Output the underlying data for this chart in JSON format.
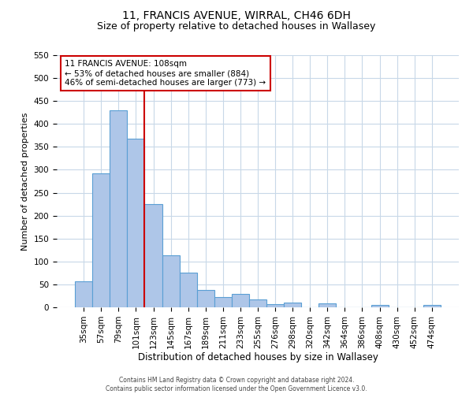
{
  "title": "11, FRANCIS AVENUE, WIRRAL, CH46 6DH",
  "subtitle": "Size of property relative to detached houses in Wallasey",
  "xlabel": "Distribution of detached houses by size in Wallasey",
  "ylabel": "Number of detached properties",
  "bar_labels": [
    "35sqm",
    "57sqm",
    "79sqm",
    "101sqm",
    "123sqm",
    "145sqm",
    "167sqm",
    "189sqm",
    "211sqm",
    "233sqm",
    "255sqm",
    "276sqm",
    "298sqm",
    "320sqm",
    "342sqm",
    "364sqm",
    "386sqm",
    "408sqm",
    "430sqm",
    "452sqm",
    "474sqm"
  ],
  "bar_values": [
    57,
    293,
    430,
    368,
    226,
    113,
    76,
    38,
    22,
    29,
    18,
    7,
    11,
    0,
    9,
    0,
    0,
    5,
    0,
    0,
    5
  ],
  "bar_color": "#aec6e8",
  "bar_edge_color": "#5a9fd4",
  "annotation_line1": "11 FRANCIS AVENUE: 108sqm",
  "annotation_line2": "← 53% of detached houses are smaller (884)",
  "annotation_line3": "46% of semi-detached houses are larger (773) →",
  "annotation_box_color": "#ffffff",
  "annotation_box_edge": "#cc0000",
  "red_line_color": "#cc0000",
  "ylim": [
    0,
    550
  ],
  "yticks": [
    0,
    50,
    100,
    150,
    200,
    250,
    300,
    350,
    400,
    450,
    500,
    550
  ],
  "footer_line1": "Contains HM Land Registry data © Crown copyright and database right 2024.",
  "footer_line2": "Contains public sector information licensed under the Open Government Licence v3.0.",
  "background_color": "#ffffff",
  "grid_color": "#c8d8e8",
  "title_fontsize": 10,
  "subtitle_fontsize": 9,
  "annotation_fontsize": 7.5,
  "footer_fontsize": 5.5,
  "ylabel_fontsize": 8,
  "xlabel_fontsize": 8.5,
  "tick_fontsize": 7.5,
  "red_line_x": 3.5
}
